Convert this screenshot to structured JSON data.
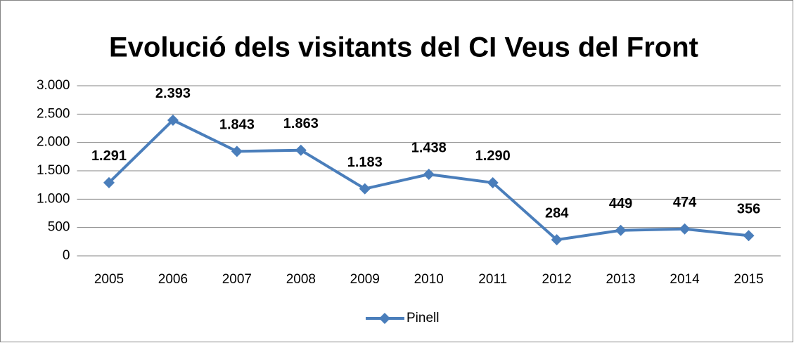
{
  "chart_data": {
    "type": "line",
    "title": "Evolució dels visitants del CI Veus del Front",
    "categories": [
      "2005",
      "2006",
      "2007",
      "2008",
      "2009",
      "2010",
      "2011",
      "2012",
      "2013",
      "2014",
      "2015"
    ],
    "series": [
      {
        "name": "Pinell",
        "color": "#4a7ebb",
        "values": [
          1291,
          2393,
          1843,
          1863,
          1183,
          1438,
          1290,
          284,
          449,
          474,
          356
        ],
        "value_labels": [
          "1.291",
          "2.393",
          "1.843",
          "1.863",
          "1.183",
          "1.438",
          "1.290",
          "284",
          "449",
          "474",
          "356"
        ]
      }
    ],
    "ylim": [
      0,
      3000
    ],
    "yticks": [
      0,
      500,
      {
        "value": 1000,
        "label": "1.000"
      },
      {
        "value": 1500,
        "label": "1.500"
      },
      {
        "value": 2000,
        "label": "2.000"
      },
      {
        "value": 2500,
        "label": "2.500"
      },
      {
        "value": 3000,
        "label": "3.000"
      }
    ],
    "grid": true,
    "legend": "bottom"
  }
}
